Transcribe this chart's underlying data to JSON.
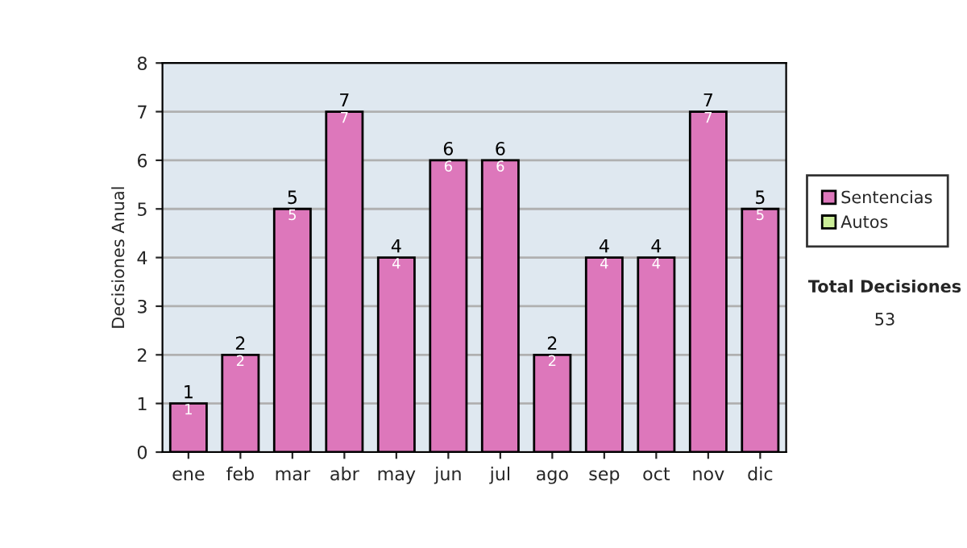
{
  "chart_data": {
    "type": "bar",
    "stacked": true,
    "ylabel": "Decisiones Anual",
    "categories": [
      "ene",
      "feb",
      "mar",
      "abr",
      "may",
      "jun",
      "jul",
      "ago",
      "sep",
      "oct",
      "nov",
      "dic"
    ],
    "series": [
      {
        "name": "Sentencias",
        "color": "#dd77bb",
        "values": [
          1,
          2,
          5,
          7,
          4,
          6,
          6,
          2,
          4,
          4,
          7,
          5
        ],
        "value_labels": [
          "1",
          "2",
          "5",
          "7",
          "4",
          "6",
          "6",
          "2",
          "4",
          "4",
          "7",
          "5"
        ]
      },
      {
        "name": "Autos",
        "color": "#ccee99",
        "values": [
          0,
          0,
          0,
          0,
          0,
          0,
          0,
          0,
          0,
          0,
          0,
          0
        ]
      }
    ],
    "totals": [
      "1",
      "2",
      "5",
      "7",
      "4",
      "6",
      "6",
      "2",
      "4",
      "4",
      "7",
      "5"
    ],
    "ylim": [
      0,
      8
    ],
    "yticks": [
      0,
      1,
      2,
      3,
      4,
      5,
      6,
      7,
      8
    ],
    "grid": "y",
    "legend": "right",
    "annotations": [
      "Total Decisiones",
      "53"
    ]
  }
}
